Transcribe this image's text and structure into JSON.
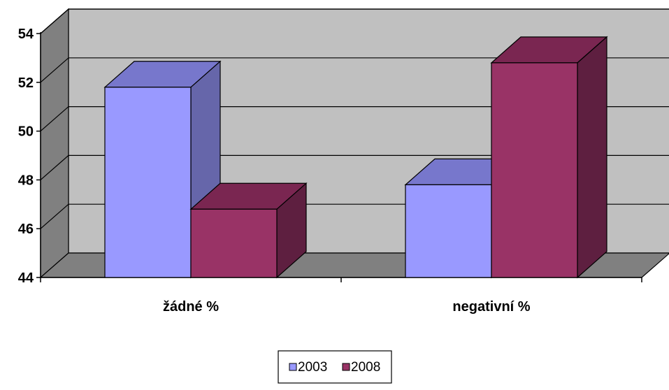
{
  "chart_data": {
    "type": "bar",
    "three_d": true,
    "categories": [
      "žádné %",
      "negativní %"
    ],
    "series": [
      {
        "name": "2003",
        "values": [
          51.8,
          47.8
        ],
        "color": "#9999FF",
        "top_color": "#7777CC",
        "side_color": "#6666AA"
      },
      {
        "name": "2008",
        "values": [
          46.8,
          52.8
        ],
        "color": "#993366",
        "top_color": "#7A2651",
        "side_color": "#5E1F40"
      }
    ],
    "ylim": [
      44,
      54
    ],
    "yticks": [
      44,
      46,
      48,
      50,
      52,
      54
    ],
    "grid": true,
    "wall_color": "#C0C0C0",
    "floor_color": "#808080",
    "legend": {
      "position": "bottom"
    }
  }
}
